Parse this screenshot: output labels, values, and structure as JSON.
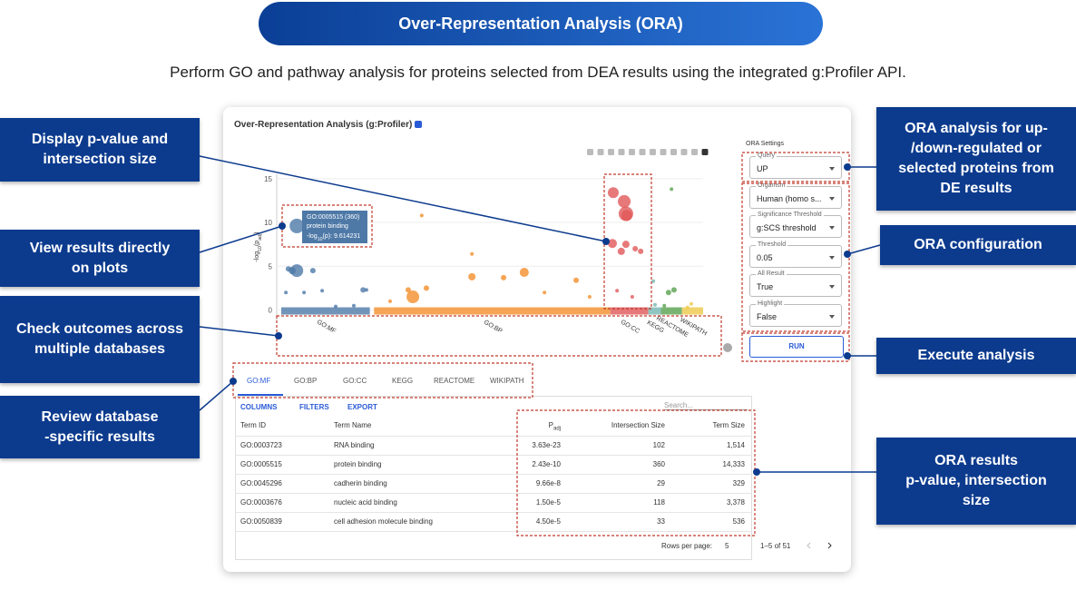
{
  "header": {
    "title": "Over-Representation Analysis (ORA)",
    "subtitle": "Perform GO and pathway analysis for proteins selected from DEA results using the integrated g:Profiler API."
  },
  "app": {
    "title": "Over-Representation Analysis (g:Profiler)",
    "plot": {
      "y_label": [
        {
          "text": "-log"
        },
        {
          "text": "10",
          "sub": true
        },
        {
          "text": "(p"
        },
        {
          "text": "adj",
          "sub": true
        },
        {
          "text": ")"
        }
      ],
      "ylim": [
        -1.5,
        15.5
      ],
      "yticks": [
        0,
        5,
        10,
        15
      ],
      "xlim": [
        0,
        100
      ],
      "groups": [
        {
          "name": "GO:MF",
          "color": "#4e79a7",
          "range": [
            0,
            21
          ],
          "points": [
            {
              "x": 3.7,
              "y": 9.6,
              "size": 8
            },
            {
              "x": 2.6,
              "y": 4.5,
              "size": 4
            },
            {
              "x": 3.7,
              "y": 4.5,
              "size": 7
            },
            {
              "x": 1.7,
              "y": 4.7,
              "size": 3
            },
            {
              "x": 7.5,
              "y": 4.5,
              "size": 3
            },
            {
              "x": 1.1,
              "y": 2,
              "size": 2
            },
            {
              "x": 5.4,
              "y": 2,
              "size": 2
            },
            {
              "x": 9.7,
              "y": 2.2,
              "size": 2
            },
            {
              "x": 19.4,
              "y": 2.3,
              "size": 3
            },
            {
              "x": 20.2,
              "y": 2.3,
              "size": 2
            },
            {
              "x": 17.2,
              "y": 0.5,
              "size": 2
            },
            {
              "x": 12.9,
              "y": 0.4,
              "size": 2
            }
          ]
        },
        {
          "name": "GO:BP",
          "color": "#f28e2b",
          "range": [
            22,
            78
          ],
          "points": [
            {
              "x": 31.2,
              "y": 1.5,
              "size": 7
            },
            {
              "x": 30.1,
              "y": 2.3,
              "size": 3
            },
            {
              "x": 45.2,
              "y": 3.8,
              "size": 4
            },
            {
              "x": 57.6,
              "y": 4.3,
              "size": 5
            },
            {
              "x": 52.7,
              "y": 3.7,
              "size": 3
            },
            {
              "x": 69.9,
              "y": 3.4,
              "size": 3
            },
            {
              "x": 33.3,
              "y": 10.8,
              "size": 2
            },
            {
              "x": 45.2,
              "y": 6.4,
              "size": 2
            },
            {
              "x": 34.4,
              "y": 2.5,
              "size": 3
            },
            {
              "x": 62.4,
              "y": 2,
              "size": 2
            },
            {
              "x": 73.1,
              "y": 1.5,
              "size": 2
            },
            {
              "x": 25.8,
              "y": 1,
              "size": 2
            }
          ]
        },
        {
          "name": "GO:CC",
          "color": "#e15759",
          "range": [
            78,
            87
          ],
          "points": [
            {
              "x": 78.7,
              "y": 13.4,
              "size": 6
            },
            {
              "x": 81.3,
              "y": 12.4,
              "size": 7
            },
            {
              "x": 81.7,
              "y": 11,
              "size": 8
            },
            {
              "x": 81.9,
              "y": 10.8,
              "size": 6
            },
            {
              "x": 78.5,
              "y": 7.6,
              "size": 5
            },
            {
              "x": 81.7,
              "y": 7.5,
              "size": 4
            },
            {
              "x": 80.6,
              "y": 6.7,
              "size": 4
            },
            {
              "x": 83.9,
              "y": 7,
              "size": 3
            },
            {
              "x": 85.2,
              "y": 6.7,
              "size": 3
            },
            {
              "x": 79.6,
              "y": 2.2,
              "size": 2
            },
            {
              "x": 83.2,
              "y": 1.5,
              "size": 2
            }
          ]
        },
        {
          "name": "KEGG",
          "color": "#76b7b2",
          "range": [
            87,
            90
          ],
          "points": [
            {
              "x": 88.2,
              "y": 3.3,
              "size": 2
            },
            {
              "x": 88.6,
              "y": 0.6,
              "size": 2
            }
          ]
        },
        {
          "name": "REACTOME",
          "color": "#59a14f",
          "range": [
            90,
            95
          ],
          "points": [
            {
              "x": 92.5,
              "y": 13.8,
              "size": 2
            },
            {
              "x": 91.8,
              "y": 2,
              "size": 3
            },
            {
              "x": 93.1,
              "y": 2.3,
              "size": 3
            },
            {
              "x": 90.8,
              "y": 0.5,
              "size": 2
            }
          ]
        },
        {
          "name": "WIKIPATH",
          "color": "#edc948",
          "range": [
            95,
            100
          ],
          "points": [
            {
              "x": 97.2,
              "y": 0.7,
              "size": 2
            },
            {
              "x": 96.3,
              "y": 0.3,
              "size": 2
            }
          ]
        }
      ],
      "tooltip": {
        "lines": [
          "GO:0005515 (360)",
          "protein binding"
        ],
        "value_line": [
          {
            "text": "-log"
          },
          {
            "text": "10",
            "sub": true
          },
          {
            "text": "(p): 9.614231"
          }
        ]
      }
    },
    "settings": {
      "title": "ORA Settings",
      "fields": [
        {
          "label": "Query",
          "value": "UP"
        },
        {
          "label": "Organism",
          "value": "Human (homo s..."
        },
        {
          "label": "Significance Threshold",
          "value": "g:SCS threshold"
        },
        {
          "label": "Threshold",
          "value": "0.05"
        },
        {
          "label": "All Result",
          "value": "True"
        },
        {
          "label": "Highlight",
          "value": "False"
        }
      ],
      "button": "RUN"
    },
    "tabs": [
      "GO:MF",
      "GO:BP",
      "GO:CC",
      "KEGG",
      "REACTOME",
      "WIKIPATH"
    ],
    "active_tab": 0,
    "table": {
      "toolbar": [
        "COLUMNS",
        "FILTERS",
        "EXPORT"
      ],
      "search": "Search...",
      "columns": [
        "Term ID",
        "Term Name",
        "P",
        "Intersection Size",
        "Term Size"
      ],
      "p_sub": "adj",
      "rows": [
        [
          "GO:0003723",
          "RNA binding",
          "3.63e-23",
          "102",
          "1,514"
        ],
        [
          "GO:0005515",
          "protein binding",
          "2.43e-10",
          "360",
          "14,333"
        ],
        [
          "GO:0045296",
          "cadherin binding",
          "9.66e-8",
          "29",
          "329"
        ],
        [
          "GO:0003676",
          "nucleic acid binding",
          "1.50e-5",
          "118",
          "3,378"
        ],
        [
          "GO:0050839",
          "cell adhesion molecule binding",
          "4.50e-5",
          "33",
          "536"
        ]
      ],
      "footer": {
        "rows_per_page": "Rows per page:",
        "page_size": "5",
        "range": "1–5 of 51"
      }
    }
  },
  "callouts": [
    {
      "lines": [
        "Display p-value and",
        "intersection size"
      ]
    },
    {
      "lines": [
        "View results directly",
        "on plots"
      ]
    },
    {
      "lines": [
        "Check outcomes across",
        "multiple databases"
      ]
    },
    {
      "lines": [
        "Review database",
        "-specific results"
      ]
    },
    {
      "lines": [
        "ORA analysis for up-",
        "/down-regulated or",
        "selected proteins from",
        "DE results"
      ]
    },
    {
      "lines": [
        "ORA configuration"
      ]
    },
    {
      "lines": [
        "Execute analysis"
      ]
    },
    {
      "lines": [
        "ORA results",
        "p-value, intersection",
        "size"
      ]
    }
  ]
}
